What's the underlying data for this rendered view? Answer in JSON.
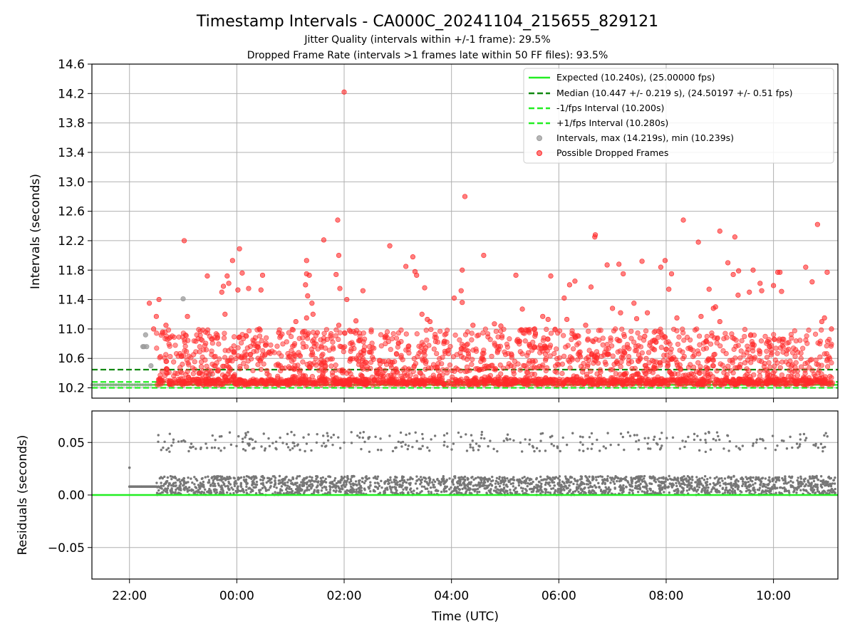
{
  "chart_data": [
    {
      "type": "scatter",
      "title": "Timestamp Intervals - CA000C_20241104_215655_829121",
      "subtitle_1": "Jitter Quality (intervals within +/-1 frame): 29.5%",
      "subtitle_2": "Dropped Frame Rate (intervals >1 frames late within 50 FF files): 93.5%",
      "ylabel": "Intervals (seconds)",
      "ylim": [
        10.06,
        14.6
      ],
      "xlim_hours": [
        21.3,
        35.2
      ],
      "yticks": [
        "10.2",
        "10.6",
        "11.0",
        "11.4",
        "11.8",
        "12.2",
        "12.6",
        "13.0",
        "13.4",
        "13.8",
        "14.2",
        "14.6"
      ],
      "grid": true,
      "legend_position": "top-right",
      "reference_lines": {
        "expected": 10.24,
        "median": 10.447,
        "minus_one_frame": 10.2,
        "plus_one_frame": 10.28
      },
      "legend": [
        {
          "label": "Expected (10.240s), (25.00000 fps)",
          "style": "solid",
          "color": "#22ee22"
        },
        {
          "label": "Median (10.447 +/- 0.219 s), (24.50197 +/- 0.51 fps)",
          "style": "dashed",
          "color": "#118811"
        },
        {
          "label": "-1/fps Interval (10.200s)",
          "style": "dashed",
          "color": "#22ee22"
        },
        {
          "label": "+1/fps Interval (10.280s)",
          "style": "dashed",
          "color": "#22ee22"
        },
        {
          "label": "Intervals, max (14.219s), min (10.239s)",
          "style": "marker",
          "color": "#999999"
        },
        {
          "label": "Possible Dropped Frames",
          "style": "marker",
          "color": "#ff2a2a"
        }
      ],
      "series": [
        {
          "role": "intervals",
          "color": "#999999",
          "points": [
            [
              22.3,
              10.92
            ],
            [
              22.25,
              10.76
            ],
            [
              22.27,
              10.76
            ],
            [
              23.0,
              11.41
            ],
            [
              22.32,
              10.76
            ],
            [
              22.4,
              10.5
            ],
            [
              23.5,
              10.38
            ],
            [
              23.6,
              10.3
            ]
          ]
        },
        {
          "role": "dropped_frames",
          "color": "#ff2a2a",
          "points": [
            [
              22.37,
              11.35
            ],
            [
              22.45,
              11.0
            ],
            [
              22.5,
              11.17
            ],
            [
              22.55,
              11.4
            ],
            [
              22.68,
              11.05
            ],
            [
              23.02,
              12.2
            ],
            [
              23.08,
              11.17
            ],
            [
              23.45,
              11.72
            ],
            [
              23.72,
              11.5
            ],
            [
              23.75,
              11.58
            ],
            [
              23.82,
              11.72
            ],
            [
              23.78,
              11.2
            ],
            [
              23.85,
              11.62
            ],
            [
              23.92,
              11.93
            ],
            [
              24.05,
              12.09
            ],
            [
              24.02,
              11.53
            ],
            [
              24.1,
              11.76
            ],
            [
              24.22,
              11.55
            ],
            [
              24.45,
              11.53
            ],
            [
              24.48,
              11.73
            ],
            [
              24.42,
              11.0
            ],
            [
              24.78,
              10.95
            ],
            [
              25.1,
              11.1
            ],
            [
              25.3,
              11.75
            ],
            [
              25.3,
              11.93
            ],
            [
              25.35,
              11.73
            ],
            [
              25.28,
              11.6
            ],
            [
              25.32,
              11.45
            ],
            [
              25.4,
              11.35
            ],
            [
              25.3,
              11.15
            ],
            [
              25.42,
              11.2
            ],
            [
              25.62,
              12.21
            ],
            [
              25.85,
              11.74
            ],
            [
              25.9,
              12.0
            ],
            [
              25.88,
              12.48
            ],
            [
              25.92,
              11.55
            ],
            [
              26.0,
              14.22
            ],
            [
              26.05,
              11.4
            ],
            [
              26.22,
              11.11
            ],
            [
              26.35,
              11.52
            ],
            [
              26.85,
              12.13
            ],
            [
              27.15,
              11.85
            ],
            [
              27.28,
              11.98
            ],
            [
              27.32,
              11.78
            ],
            [
              27.35,
              11.73
            ],
            [
              27.45,
              11.2
            ],
            [
              27.5,
              11.56
            ],
            [
              27.6,
              11.1
            ],
            [
              27.55,
              11.13
            ],
            [
              28.05,
              11.42
            ],
            [
              28.2,
              11.8
            ],
            [
              28.18,
              11.52
            ],
            [
              28.25,
              12.8
            ],
            [
              28.2,
              11.36
            ],
            [
              28.4,
              11.05
            ],
            [
              28.6,
              12.0
            ],
            [
              28.8,
              11.07
            ],
            [
              28.92,
              11.04
            ],
            [
              29.2,
              11.73
            ],
            [
              29.32,
              11.27
            ],
            [
              29.7,
              11.17
            ],
            [
              29.8,
              11.13
            ],
            [
              29.85,
              11.72
            ],
            [
              30.1,
              11.42
            ],
            [
              30.15,
              11.13
            ],
            [
              30.2,
              11.6
            ],
            [
              30.3,
              11.65
            ],
            [
              30.6,
              11.57
            ],
            [
              30.67,
              12.25
            ],
            [
              30.68,
              12.28
            ],
            [
              30.9,
              11.87
            ],
            [
              31.0,
              11.28
            ],
            [
              31.12,
              11.88
            ],
            [
              31.15,
              11.22
            ],
            [
              31.2,
              11.75
            ],
            [
              31.4,
              11.35
            ],
            [
              31.45,
              11.14
            ],
            [
              31.55,
              11.92
            ],
            [
              31.6,
              10.9
            ],
            [
              31.65,
              11.22
            ],
            [
              31.9,
              11.84
            ],
            [
              31.98,
              11.93
            ],
            [
              32.05,
              11.54
            ],
            [
              32.1,
              11.75
            ],
            [
              32.2,
              11.15
            ],
            [
              32.32,
              12.48
            ],
            [
              32.6,
              12.18
            ],
            [
              32.65,
              11.17
            ],
            [
              32.8,
              11.54
            ],
            [
              32.88,
              11.28
            ],
            [
              32.92,
              11.3
            ],
            [
              33.0,
              11.1
            ],
            [
              33.0,
              12.33
            ],
            [
              33.15,
              11.9
            ],
            [
              33.25,
              11.74
            ],
            [
              33.28,
              12.25
            ],
            [
              33.34,
              11.46
            ],
            [
              33.35,
              11.79
            ],
            [
              33.62,
              11.8
            ],
            [
              33.55,
              11.5
            ],
            [
              33.75,
              11.62
            ],
            [
              33.78,
              11.52
            ],
            [
              34.0,
              11.59
            ],
            [
              34.08,
              11.77
            ],
            [
              34.12,
              11.77
            ],
            [
              34.15,
              11.51
            ],
            [
              34.6,
              11.84
            ],
            [
              34.72,
              11.64
            ],
            [
              34.82,
              12.42
            ],
            [
              34.95,
              11.15
            ],
            [
              35.0,
              11.77
            ],
            [
              35.08,
              11.0
            ],
            [
              34.9,
              11.1
            ],
            [
              25.9,
              11.05
            ],
            [
              26.1,
              10.98
            ],
            [
              25.5,
              10.95
            ],
            [
              29.55,
              11.0
            ],
            [
              30.5,
              11.05
            ]
          ],
          "dense_band": {
            "y_range": [
              10.24,
              11.0
            ],
            "x_range": [
              22.5,
              35.1
            ],
            "note": "thousands of overlapping points"
          }
        }
      ]
    },
    {
      "type": "scatter",
      "xlabel": "Time (UTC)",
      "ylabel": "Residuals (seconds)",
      "ylim": [
        -0.08,
        0.08
      ],
      "yticks": [
        "0.05",
        "0.00",
        "−0.05"
      ],
      "xticks": [
        "22:00",
        "00:00",
        "02:00",
        "04:00",
        "06:00",
        "08:00",
        "10:00"
      ],
      "xtick_hours": [
        22,
        24,
        26,
        28,
        30,
        32,
        34
      ],
      "grid": true,
      "reference_line": 0.0,
      "series": [
        {
          "role": "residuals",
          "color": "#777777",
          "start_point": [
            22.0,
            0.026
          ],
          "flat_segment": {
            "x_range": [
              22.0,
              22.5
            ],
            "y": 0.008
          },
          "bands": [
            {
              "y_range": [
                0.0,
                0.018
              ],
              "x_range": [
                22.5,
                35.15
              ]
            },
            {
              "y_range": [
                0.041,
                0.06
              ],
              "x_range": [
                22.5,
                35.1
              ]
            }
          ]
        }
      ]
    }
  ]
}
